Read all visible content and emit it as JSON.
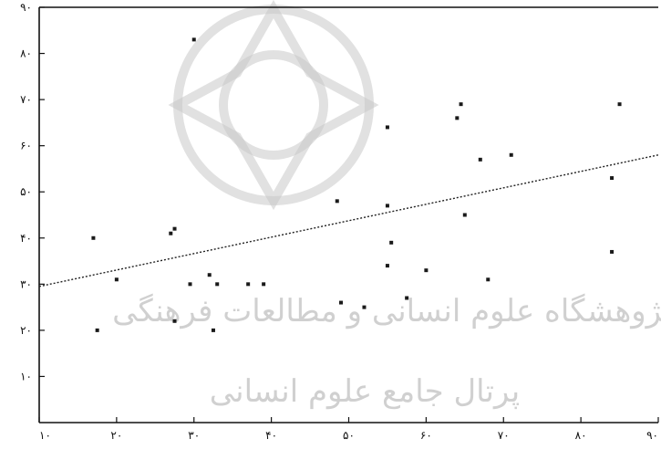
{
  "chart_data": {
    "type": "scatter",
    "title": "",
    "xlabel": "",
    "ylabel": "",
    "xlim": [
      10,
      90
    ],
    "ylim": [
      0,
      90
    ],
    "xticks": [
      10,
      20,
      30,
      40,
      50,
      60,
      70,
      80,
      90
    ],
    "yticks": [
      10,
      20,
      30,
      40,
      50,
      60,
      70,
      80,
      90
    ],
    "xtick_labels": [
      "۱۰",
      "۲۰",
      "۳۰",
      "۴۰",
      "۵۰",
      "۶۰",
      "۷۰",
      "۸۰",
      "۹۰"
    ],
    "ytick_labels": [
      "۱۰",
      "۲۰",
      "۳۰",
      "۴۰",
      "۵۰",
      "۶۰",
      "۷۰",
      "۸۰",
      "۹۰"
    ],
    "grid": false,
    "points": [
      {
        "x": 17,
        "y": 40
      },
      {
        "x": 17.5,
        "y": 20
      },
      {
        "x": 20,
        "y": 31
      },
      {
        "x": 27,
        "y": 41
      },
      {
        "x": 27.5,
        "y": 42
      },
      {
        "x": 27.5,
        "y": 22
      },
      {
        "x": 29.5,
        "y": 30
      },
      {
        "x": 30,
        "y": 83
      },
      {
        "x": 32,
        "y": 32
      },
      {
        "x": 32.5,
        "y": 20
      },
      {
        "x": 33,
        "y": 30
      },
      {
        "x": 37,
        "y": 30
      },
      {
        "x": 39,
        "y": 30
      },
      {
        "x": 48.5,
        "y": 48
      },
      {
        "x": 49,
        "y": 26
      },
      {
        "x": 52,
        "y": 25
      },
      {
        "x": 55,
        "y": 64
      },
      {
        "x": 55,
        "y": 47
      },
      {
        "x": 55.5,
        "y": 39
      },
      {
        "x": 55,
        "y": 34
      },
      {
        "x": 57.5,
        "y": 27
      },
      {
        "x": 60,
        "y": 33
      },
      {
        "x": 64,
        "y": 66
      },
      {
        "x": 64.5,
        "y": 69
      },
      {
        "x": 65,
        "y": 45
      },
      {
        "x": 67,
        "y": 57
      },
      {
        "x": 68,
        "y": 31
      },
      {
        "x": 71,
        "y": 58
      },
      {
        "x": 84,
        "y": 53
      },
      {
        "x": 84,
        "y": 37
      },
      {
        "x": 85,
        "y": 69
      }
    ],
    "trendline": {
      "style": "dashed",
      "x": [
        10,
        90
      ],
      "y": [
        29.5,
        58
      ]
    }
  }
}
